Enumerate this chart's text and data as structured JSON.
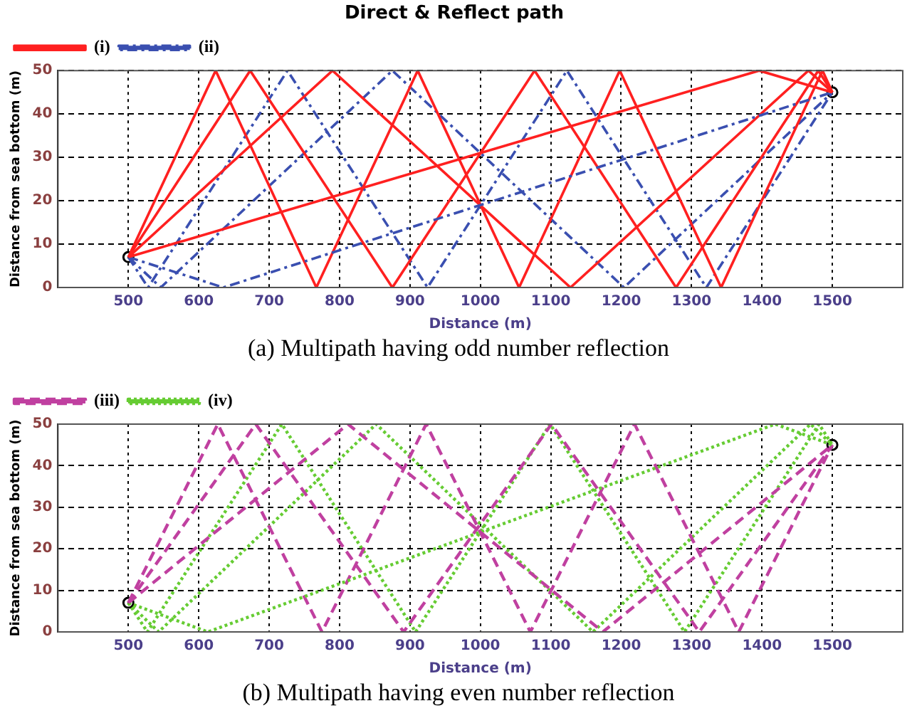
{
  "chart_data": [
    {
      "type": "line",
      "title": "Direct & Reflect path",
      "xlabel": "Distance (m)",
      "ylabel": "Distance from sea bottom (m)",
      "xlim": [
        400,
        1600
      ],
      "ylim": [
        0,
        50
      ],
      "xticks": [
        500,
        600,
        700,
        800,
        900,
        1000,
        1100,
        1200,
        1300,
        1400,
        1500
      ],
      "yticks": [
        0,
        10,
        20,
        30,
        40,
        50
      ],
      "grid": true,
      "legend": "top left",
      "annotations": [
        "(a) Multipath having odd number reflection"
      ],
      "series": [
        {
          "name": "(i)",
          "color": "#ff2020",
          "line_style": "solid",
          "x": [
            500,
            1396,
            1500
          ],
          "values": [
            7,
            50,
            45
          ]
        },
        {
          "name": "(ii)",
          "color": "#3a4fb0",
          "line_style": "dashdot",
          "x": [
            500,
            635,
            1500
          ],
          "values": [
            7,
            0,
            45
          ]
        },
        {
          "color": "#ff2020",
          "line_style": "solid",
          "x": [
            500,
            790,
            1128,
            1466,
            1500
          ],
          "values": [
            7,
            50,
            0,
            50,
            45
          ]
        },
        {
          "color": "#ff2020",
          "line_style": "solid",
          "x": [
            500,
            673,
            875,
            1077,
            1278,
            1480,
            1500
          ],
          "values": [
            7,
            50,
            0,
            50,
            0,
            50,
            45
          ]
        },
        {
          "color": "#ff2020",
          "line_style": "solid",
          "x": [
            500,
            624,
            767,
            911,
            1055,
            1198,
            1342,
            1486,
            1500
          ],
          "values": [
            7,
            50,
            0,
            50,
            0,
            50,
            0,
            50,
            45
          ]
        },
        {
          "color": "#3a4fb0",
          "line_style": "dashdot",
          "x": [
            500,
            546,
            875,
            1204,
            1500
          ],
          "values": [
            7,
            0,
            50,
            0,
            45
          ]
        },
        {
          "color": "#3a4fb0",
          "line_style": "dashdot",
          "x": [
            500,
            528,
            726,
            925,
            1123,
            1321,
            1500
          ],
          "values": [
            7,
            0,
            50,
            0,
            50,
            0,
            45
          ]
        },
        {
          "type": "scatter",
          "color": "#000000",
          "marker": "circle",
          "x": [
            500,
            1500
          ],
          "values": [
            7,
            45
          ]
        }
      ]
    },
    {
      "type": "line",
      "xlabel": "Distance (m)",
      "ylabel": "Distance from sea bottom (m)",
      "xlim": [
        400,
        1600
      ],
      "ylim": [
        0,
        50
      ],
      "xticks": [
        500,
        600,
        700,
        800,
        900,
        1000,
        1100,
        1200,
        1300,
        1400,
        1500
      ],
      "yticks": [
        0,
        10,
        20,
        30,
        40,
        50
      ],
      "grid": true,
      "legend": "top left",
      "annotations": [
        "(b) Multipath having even number reflection"
      ],
      "series": [
        {
          "name": "(iii)",
          "color": "#c040a0",
          "line_style": "dashed",
          "x": [
            500,
            812,
            1174,
            1500
          ],
          "values": [
            7,
            50,
            0,
            45
          ]
        },
        {
          "name": "(iv)",
          "color": "#66cc33",
          "line_style": "dotted",
          "x": [
            500,
            613,
            1419,
            1500
          ],
          "values": [
            7,
            0,
            50,
            45
          ]
        },
        {
          "color": "#c040a0",
          "line_style": "dashed",
          "x": [
            500,
            681,
            891,
            1101,
            1311,
            1500
          ],
          "values": [
            7,
            50,
            0,
            50,
            0,
            45
          ]
        },
        {
          "color": "#c040a0",
          "line_style": "dashed",
          "x": [
            500,
            627,
            775,
            923,
            1071,
            1219,
            1367,
            1500
          ],
          "values": [
            7,
            50,
            0,
            50,
            0,
            50,
            0,
            45
          ]
        },
        {
          "color": "#66cc33",
          "line_style": "dotted",
          "x": [
            500,
            543,
            852,
            1160,
            1469,
            1500
          ],
          "values": [
            7,
            0,
            50,
            0,
            50,
            45
          ]
        },
        {
          "color": "#66cc33",
          "line_style": "dotted",
          "x": [
            500,
            527,
            718,
            908,
            1099,
            1290,
            1481,
            1500
          ],
          "values": [
            7,
            0,
            50,
            0,
            50,
            0,
            50,
            45
          ]
        },
        {
          "type": "scatter",
          "color": "#000000",
          "marker": "circle",
          "x": [
            500,
            1500
          ],
          "values": [
            7,
            45
          ]
        }
      ]
    }
  ]
}
